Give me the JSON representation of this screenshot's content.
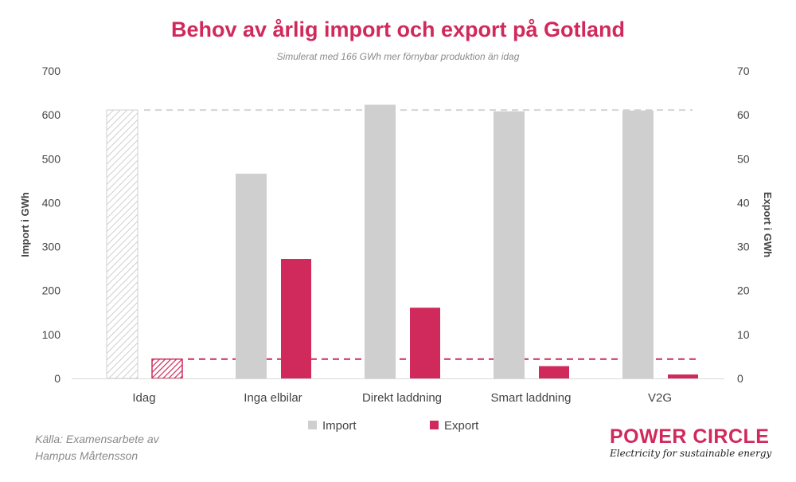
{
  "chart_data": {
    "type": "bar",
    "title": "Behov av årlig import och export på Gotland",
    "subtitle": "Simulerat med 166 GWh mer förnybar produktion än idag",
    "categories": [
      "Idag",
      "Inga elbilar",
      "Direkt laddning",
      "Smart laddning",
      "V2G"
    ],
    "series": [
      {
        "name": "Import",
        "axis": "left",
        "color": "#cfcfcf",
        "values": [
          611,
          466,
          623,
          608,
          610
        ]
      },
      {
        "name": "Export",
        "axis": "right",
        "color": "#d02a5c",
        "values": [
          4.4,
          27.2,
          16.1,
          2.8,
          0.9
        ]
      }
    ],
    "ylabel": "Import i GWh",
    "y2label": "Export i GWh",
    "ylim": [
      0,
      700
    ],
    "y2lim": [
      0,
      70
    ],
    "yticks": [
      "0",
      "100",
      "200",
      "300",
      "400",
      "500",
      "600",
      "700"
    ],
    "y2ticks": [
      "0",
      "10",
      "20",
      "30",
      "40",
      "50",
      "60",
      "70"
    ],
    "reference_lines": {
      "import": 611,
      "export": 4.4
    },
    "hatched_category": "Idag",
    "grid": false,
    "legend_position": "bottom"
  },
  "source": [
    "Källa: Examensarbete av",
    "Hampus Mårtensson"
  ],
  "logo": {
    "name": "POWER CIRCLE",
    "tagline": "Electricity for sustainable energy"
  },
  "colors": {
    "accent": "#d02a5c",
    "import": "#cfcfcf",
    "text": "#595959"
  }
}
